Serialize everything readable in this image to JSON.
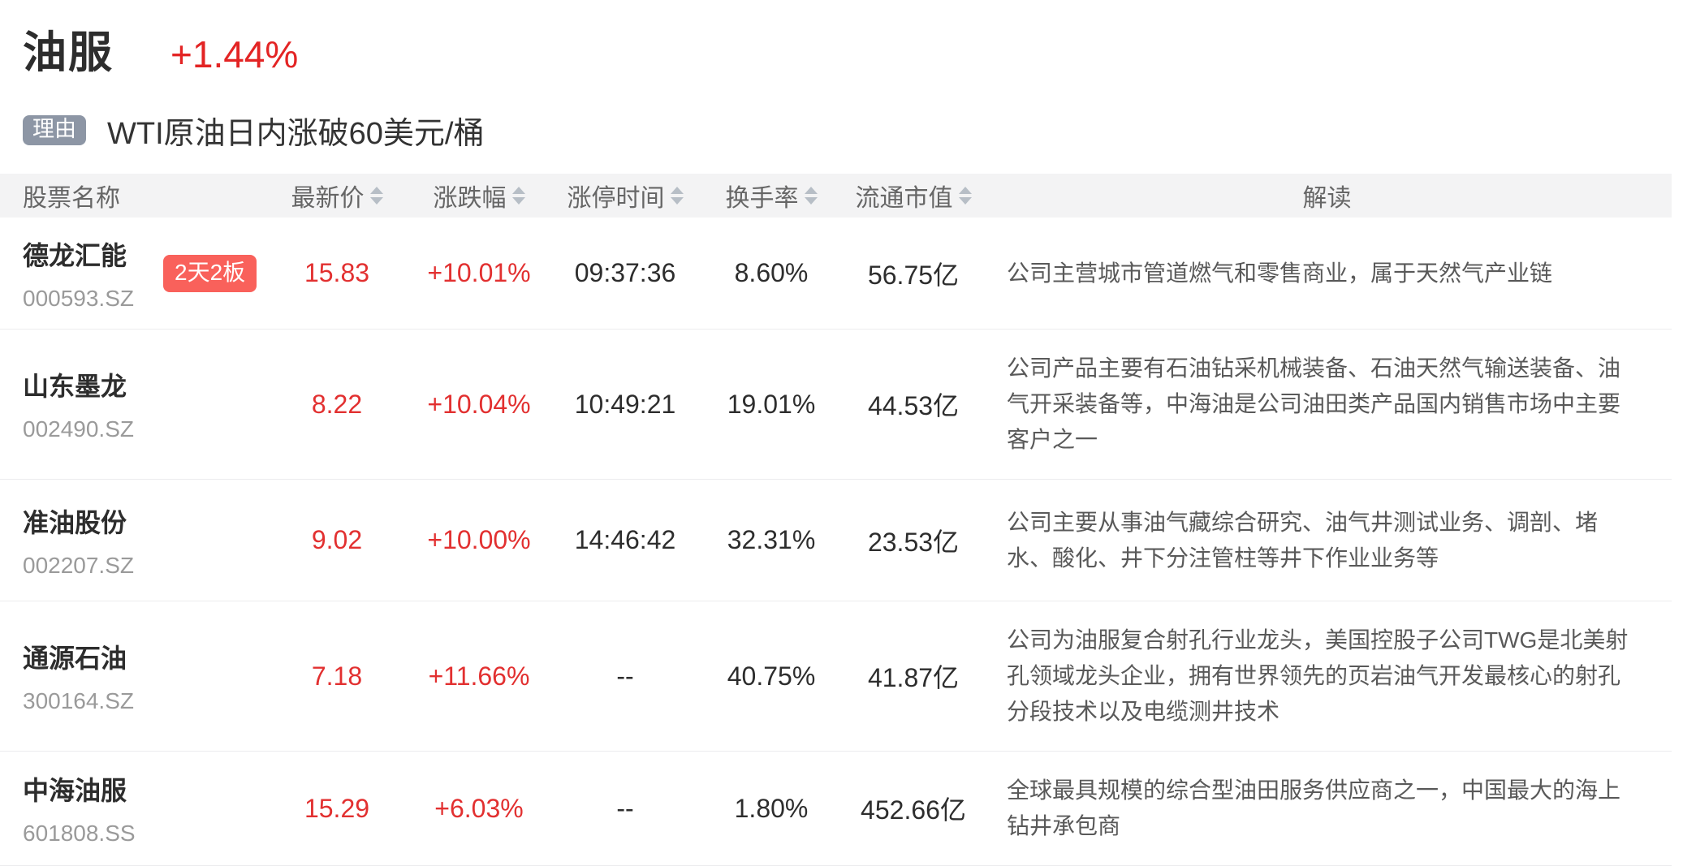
{
  "header": {
    "sector_name": "油服",
    "sector_change": "+1.44%",
    "reason_tag": "理由",
    "reason_text": "WTI原油日内涨破60美元/桶"
  },
  "colors": {
    "up_red": "#e23030",
    "badge_bg": "#f9615b",
    "reason_tag_bg": "#8d96a5",
    "table_header_bg": "#f3f3f4"
  },
  "table": {
    "columns": [
      {
        "label": "股票名称",
        "sortable": false
      },
      {
        "label": "最新价",
        "sortable": true
      },
      {
        "label": "涨跌幅",
        "sortable": true
      },
      {
        "label": "涨停时间",
        "sortable": true
      },
      {
        "label": "换手率",
        "sortable": true
      },
      {
        "label": "流通市值",
        "sortable": true
      },
      {
        "label": "解读",
        "sortable": false
      }
    ],
    "rows": [
      {
        "name": "德龙汇能",
        "code": "000593.SZ",
        "badge": "2天2板",
        "price": "15.83",
        "change": "+10.01%",
        "limit_time": "09:37:36",
        "turnover": "8.60%",
        "market_cap": "56.75亿",
        "interpretation": "公司主营城市管道燃气和零售商业，属于天然气产业链"
      },
      {
        "name": "山东墨龙",
        "code": "002490.SZ",
        "price": "8.22",
        "change": "+10.04%",
        "limit_time": "10:49:21",
        "turnover": "19.01%",
        "market_cap": "44.53亿",
        "interpretation": "公司产品主要有石油钻采机械装备、石油天然气输送装备、油气开采装备等，中海油是公司油田类产品国内销售市场中主要客户之一"
      },
      {
        "name": "准油股份",
        "code": "002207.SZ",
        "price": "9.02",
        "change": "+10.00%",
        "limit_time": "14:46:42",
        "turnover": "32.31%",
        "market_cap": "23.53亿",
        "interpretation": "公司主要从事油气藏综合研究、油气井测试业务、调剖、堵水、酸化、井下分注管柱等井下作业业务等"
      },
      {
        "name": "通源石油",
        "code": "300164.SZ",
        "price": "7.18",
        "change": "+11.66%",
        "limit_time": "--",
        "turnover": "40.75%",
        "market_cap": "41.87亿",
        "interpretation": "公司为油服复合射孔行业龙头，美国控股子公司TWG是北美射孔领域龙头企业，拥有世界领先的页岩油气开发最核心的射孔分段技术以及电缆测井技术"
      },
      {
        "name": "中海油服",
        "code": "601808.SS",
        "price": "15.29",
        "change": "+6.03%",
        "limit_time": "--",
        "turnover": "1.80%",
        "market_cap": "452.66亿",
        "interpretation": "全球最具规模的综合型油田服务供应商之一，中国最大的海上钻井承包商"
      }
    ]
  }
}
